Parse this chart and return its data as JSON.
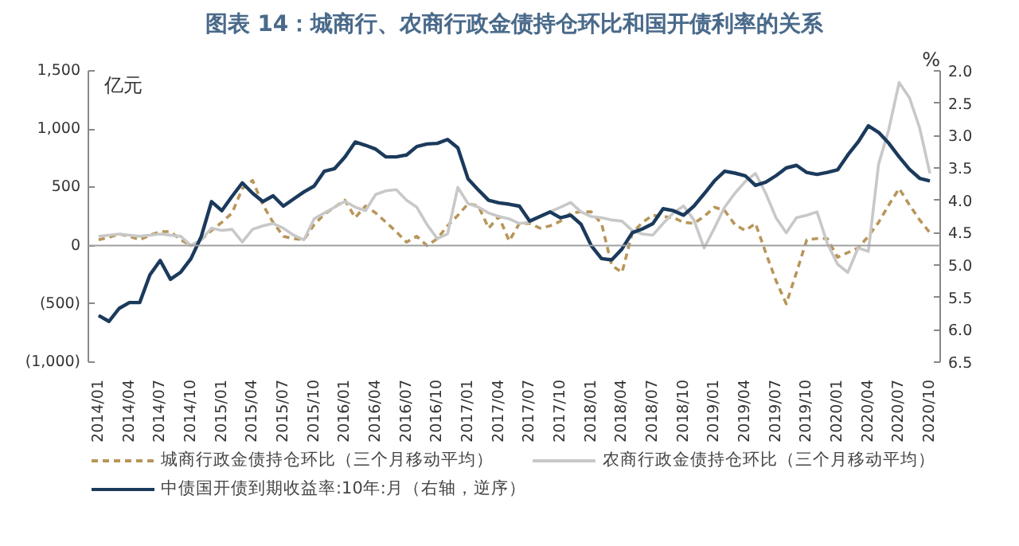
{
  "chart_data": {
    "type": "line",
    "title": "图表 14：城商行、农商行政金债持仓环比和国开债利率的关系",
    "ylabel": "亿元",
    "y2label": "%",
    "x": [
      "2014-01",
      "2014-02",
      "2014-03",
      "2014-04",
      "2014-05",
      "2014-06",
      "2014-07",
      "2014-08",
      "2014-09",
      "2014-10",
      "2014-11",
      "2014-12",
      "2015-01",
      "2015-02",
      "2015-03",
      "2015-04",
      "2015-05",
      "2015-06",
      "2015-07",
      "2015-08",
      "2015-09",
      "2015-10",
      "2015-11",
      "2015-12",
      "2016-01",
      "2016-02",
      "2016-03",
      "2016-04",
      "2016-05",
      "2016-06",
      "2016-07",
      "2016-08",
      "2016-09",
      "2016-10",
      "2016-11",
      "2016-12",
      "2017-01",
      "2017-02",
      "2017-03",
      "2017-04",
      "2017-05",
      "2017-06",
      "2017-07",
      "2017-08",
      "2017-09",
      "2017-10",
      "2017-11",
      "2017-12",
      "2018-01",
      "2018-02",
      "2018-03",
      "2018-04",
      "2018-05",
      "2018-06",
      "2018-07",
      "2018-08",
      "2018-09",
      "2018-10",
      "2018-11",
      "2018-12",
      "2019-01",
      "2019-02",
      "2019-03",
      "2019-04",
      "2019-05",
      "2019-06",
      "2019-07",
      "2019-08",
      "2019-09",
      "2019-10",
      "2019-11",
      "2019-12",
      "2020-01",
      "2020-02",
      "2020-03",
      "2020-04",
      "2020-05",
      "2020-06",
      "2020-07",
      "2020-08",
      "2020-09",
      "2020-10"
    ],
    "series": [
      {
        "name": "城商行政金债持仓环比（三个月移动平均）",
        "color": "#b8965a",
        "line_style": "dashed",
        "values": [
          50,
          70,
          100,
          80,
          50,
          90,
          120,
          120,
          50,
          0,
          50,
          130,
          200,
          280,
          490,
          560,
          350,
          200,
          80,
          60,
          50,
          180,
          270,
          330,
          390,
          240,
          340,
          280,
          200,
          120,
          30,
          80,
          0,
          60,
          170,
          260,
          360,
          340,
          150,
          250,
          40,
          190,
          190,
          150,
          170,
          210,
          280,
          290,
          290,
          190,
          -170,
          -230,
          110,
          200,
          260,
          250,
          240,
          200,
          190,
          250,
          330,
          300,
          180,
          130,
          190,
          -60,
          -300,
          -500,
          -230,
          50,
          60,
          60,
          -100,
          -60,
          -20,
          80,
          200,
          350,
          490,
          350,
          220,
          110
        ]
      },
      {
        "name": "农商行政金债持仓环比（三个月移动平均）",
        "color": "#c8c8c8",
        "line_style": "solid",
        "values": [
          80,
          90,
          100,
          90,
          80,
          90,
          100,
          90,
          80,
          0,
          50,
          150,
          130,
          140,
          30,
          140,
          170,
          190,
          150,
          90,
          50,
          230,
          280,
          330,
          380,
          330,
          300,
          440,
          470,
          480,
          390,
          330,
          180,
          60,
          100,
          500,
          360,
          330,
          280,
          250,
          230,
          190,
          200,
          250,
          290,
          330,
          370,
          290,
          250,
          240,
          220,
          210,
          130,
          100,
          90,
          190,
          280,
          340,
          220,
          -20,
          150,
          330,
          450,
          550,
          620,
          450,
          240,
          110,
          240,
          260,
          290,
          20,
          -160,
          -230,
          -20,
          -50,
          700,
          1000,
          1400,
          1270,
          1010,
          620
        ]
      },
      {
        "name": "中债国开债到期收益率:10年:月（右轴，逆序）",
        "color": "#1b3a5c",
        "line_style": "solid",
        "axis": "y2",
        "values": [
          5.78,
          5.87,
          5.67,
          5.58,
          5.58,
          5.15,
          4.93,
          5.22,
          5.11,
          4.9,
          4.56,
          4.02,
          4.16,
          3.94,
          3.73,
          3.89,
          4.02,
          3.93,
          4.09,
          3.98,
          3.87,
          3.78,
          3.55,
          3.51,
          3.33,
          3.1,
          3.15,
          3.21,
          3.33,
          3.33,
          3.3,
          3.17,
          3.13,
          3.12,
          3.06,
          3.19,
          3.67,
          3.84,
          4.0,
          4.04,
          4.06,
          4.09,
          4.32,
          4.25,
          4.18,
          4.27,
          4.23,
          4.37,
          4.7,
          4.9,
          4.92,
          4.75,
          4.5,
          4.44,
          4.36,
          4.13,
          4.16,
          4.23,
          4.09,
          3.9,
          3.7,
          3.55,
          3.58,
          3.62,
          3.77,
          3.72,
          3.62,
          3.5,
          3.46,
          3.57,
          3.6,
          3.57,
          3.53,
          3.3,
          3.1,
          2.85,
          2.95,
          3.12,
          3.33,
          3.52,
          3.66,
          3.7
        ]
      }
    ],
    "xlim": [
      "2013-12",
      "2020-11"
    ],
    "xticks": [
      {
        "value": "2014-01",
        "label": "2014/01"
      },
      {
        "value": "2014-04",
        "label": "2014/04"
      },
      {
        "value": "2014-07",
        "label": "2014/07"
      },
      {
        "value": "2014-10",
        "label": "2014/10"
      },
      {
        "value": "2015-01",
        "label": "2015/01"
      },
      {
        "value": "2015-04",
        "label": "2015/04"
      },
      {
        "value": "2015-07",
        "label": "2015/07"
      },
      {
        "value": "2015-10",
        "label": "2015/10"
      },
      {
        "value": "2016-01",
        "label": "2016/01"
      },
      {
        "value": "2016-04",
        "label": "2016/04"
      },
      {
        "value": "2016-07",
        "label": "2016/07"
      },
      {
        "value": "2016-10",
        "label": "2016/10"
      },
      {
        "value": "2017-01",
        "label": "2017/01"
      },
      {
        "value": "2017-04",
        "label": "2017/04"
      },
      {
        "value": "2017-07",
        "label": "2017/07"
      },
      {
        "value": "2017-10",
        "label": "2017/10"
      },
      {
        "value": "2018-01",
        "label": "2018/01"
      },
      {
        "value": "2018-04",
        "label": "2018/04"
      },
      {
        "value": "2018-07",
        "label": "2018/07"
      },
      {
        "value": "2018-10",
        "label": "2018/10"
      },
      {
        "value": "2019-01",
        "label": "2019/01"
      },
      {
        "value": "2019-04",
        "label": "2019/04"
      },
      {
        "value": "2019-07",
        "label": "2019/07"
      },
      {
        "value": "2019-10",
        "label": "2019/10"
      },
      {
        "value": "2020-01",
        "label": "2020/01"
      },
      {
        "value": "2020-04",
        "label": "2020/04"
      },
      {
        "value": "2020-07",
        "label": "2020/07"
      },
      {
        "value": "2020-10",
        "label": "2020/10"
      }
    ],
    "ylim": [
      -1000,
      1500
    ],
    "yticks": [
      {
        "value": 1500,
        "label": "1,500"
      },
      {
        "value": 1000,
        "label": "1,000"
      },
      500,
      0,
      {
        "value": -500,
        "label": "(500)"
      },
      {
        "value": -1000,
        "label": "(1,000)"
      }
    ],
    "y2lim": [
      6.5,
      2.0
    ],
    "y2ticks": [
      {
        "value": 2.0,
        "label": "2.0"
      },
      2.5,
      {
        "value": 3.0,
        "label": "3.0"
      },
      3.5,
      {
        "value": 4.0,
        "label": "4.0"
      },
      4.5,
      {
        "value": 5.0,
        "label": "5.0"
      },
      5.5,
      {
        "value": 6.0,
        "label": "6.0"
      },
      6.5
    ],
    "ref_lines": [
      {
        "axis": "y",
        "value": 0,
        "color": "#a0a0a0"
      }
    ],
    "grid": false,
    "legend": "bottom",
    "marker": "none"
  }
}
